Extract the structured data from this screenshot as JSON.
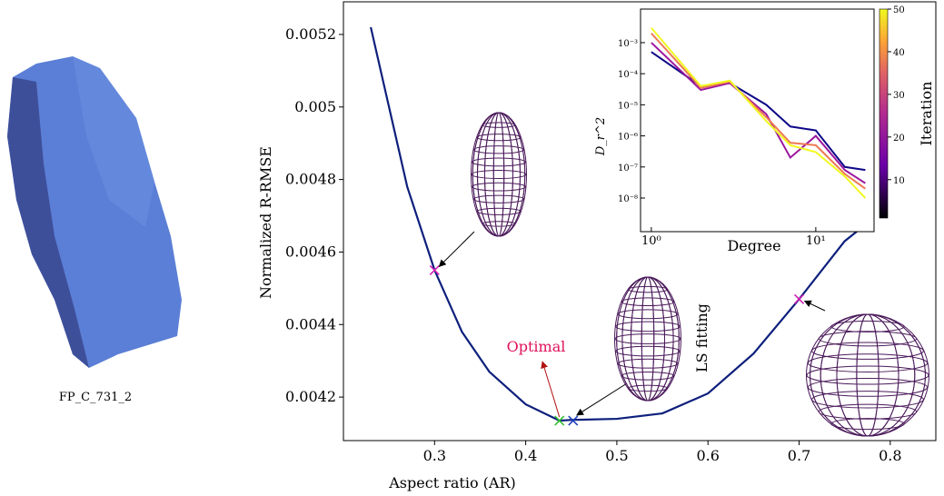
{
  "caption": "FP_C_731_2",
  "chart_data": [
    {
      "type": "line",
      "xlabel": "Aspect ratio (AR)",
      "ylabel": "Normalized R-RMSE",
      "xlim": [
        0.2,
        0.85
      ],
      "ylim": [
        0.00408,
        0.00529
      ],
      "xticks": [
        0.3,
        0.4,
        0.5,
        0.6,
        0.7,
        0.8
      ],
      "yticks": [
        0.0042,
        0.0044,
        0.0046,
        0.0048,
        0.005,
        0.0052
      ],
      "color": "#0d1f7c",
      "x": [
        0.23,
        0.25,
        0.27,
        0.3,
        0.33,
        0.36,
        0.4,
        0.437,
        0.45,
        0.5,
        0.55,
        0.6,
        0.65,
        0.7,
        0.75,
        0.78
      ],
      "values": [
        0.00522,
        0.005,
        0.00478,
        0.00455,
        0.00438,
        0.00427,
        0.00418,
        0.004135,
        0.004137,
        0.00414,
        0.004155,
        0.00421,
        0.00432,
        0.00447,
        0.00463,
        0.00469
      ],
      "markers": [
        {
          "x": 0.3,
          "y": 0.00455,
          "color": "#d21fb8"
        },
        {
          "x": 0.437,
          "y": 0.004135,
          "color": "#2fbf2f"
        },
        {
          "x": 0.452,
          "y": 0.004135,
          "color": "#1f3fbf"
        },
        {
          "x": 0.7,
          "y": 0.00447,
          "color": "#d21fb8"
        }
      ],
      "annotations": [
        "Optimal",
        "LS fitting"
      ]
    },
    {
      "type": "loglog-line",
      "xlabel": "Degree",
      "ylabel": "D_r^2",
      "xlim": [
        0.86,
        22.6
      ],
      "ylim": [
        8.3e-10,
        0.012
      ],
      "xticks": [
        {
          "value": 1,
          "label": "10⁰"
        },
        {
          "value": 10,
          "label": "10¹"
        }
      ],
      "yticks": [
        {
          "value": 0.001,
          "label": "10⁻³"
        },
        {
          "value": 0.0001,
          "label": "10⁻⁴"
        },
        {
          "value": 1e-05,
          "label": "10⁻⁵"
        },
        {
          "value": 1e-06,
          "label": "10⁻⁶"
        },
        {
          "value": 1e-07,
          "label": "10⁻⁷"
        },
        {
          "value": 1e-08,
          "label": "10⁻⁸"
        }
      ],
      "x": [
        1,
        2,
        3,
        5,
        7,
        10,
        15,
        20
      ],
      "series": [
        {
          "color": "#0d0887",
          "values": [
            0.0005,
            4e-05,
            5e-05,
            1e-05,
            2e-06,
            1.5e-06,
            1e-07,
            8e-08
          ]
        },
        {
          "color": "#9c179e",
          "values": [
            0.001,
            3e-05,
            5e-05,
            5e-06,
            2e-07,
            1e-06,
            8e-08,
            3e-08
          ]
        },
        {
          "color": "#ed7953",
          "values": [
            0.002,
            3.5e-05,
            5.5e-05,
            4e-06,
            6e-07,
            5e-07,
            6e-08,
            2e-08
          ]
        },
        {
          "color": "#f0f921",
          "values": [
            0.003,
            4e-05,
            6e-05,
            3e-06,
            5e-07,
            3e-07,
            5e-08,
            1e-08
          ]
        }
      ],
      "colorbar": {
        "label": "Iteration",
        "lim": [
          1,
          50
        ],
        "ticks": [
          10,
          20,
          30,
          40,
          50
        ]
      }
    }
  ]
}
